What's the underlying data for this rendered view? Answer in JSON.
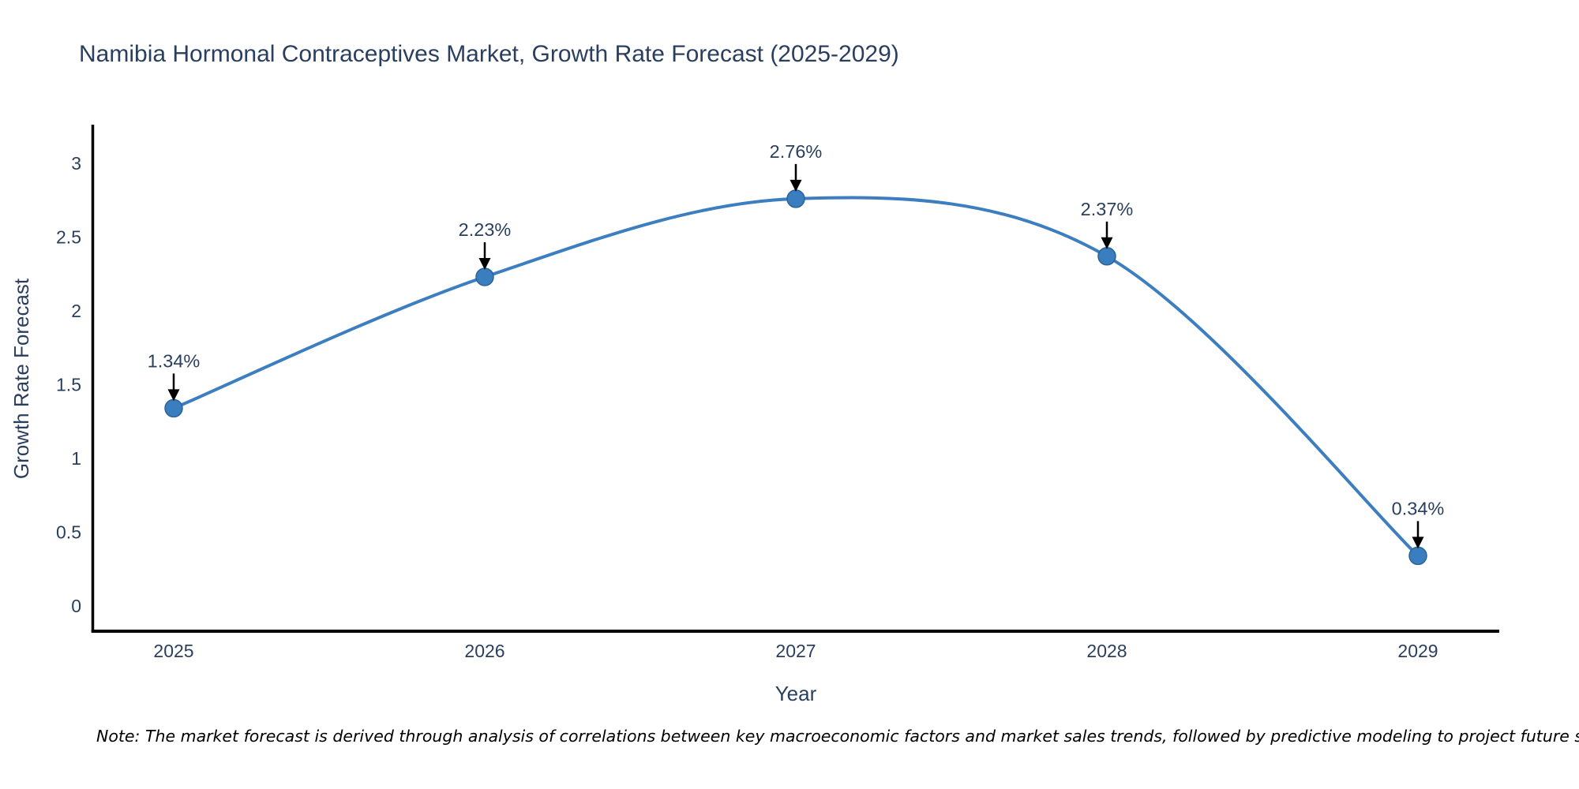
{
  "title": "Namibia Hormonal Contraceptives Market, Growth Rate Forecast (2025-2029)",
  "note": "Note: The market forecast is derived through analysis of correlations between key macroeconomic factors and market sales trends, followed by predictive modeling to project future sales",
  "chart_data": {
    "type": "line",
    "title": "Namibia Hormonal Contraceptives Market, Growth Rate Forecast (2025-2029)",
    "xlabel": "Year",
    "ylabel": "Growth Rate Forecast",
    "x": [
      2025,
      2026,
      2027,
      2028,
      2029
    ],
    "series": [
      {
        "name": "Growth Rate Forecast",
        "values": [
          1.34,
          2.23,
          2.76,
          2.37,
          0.34
        ]
      }
    ],
    "annotations": [
      "1.34%",
      "2.23%",
      "2.76%",
      "2.37%",
      "0.34%"
    ],
    "yticks": [
      0,
      0.5,
      1,
      1.5,
      2,
      2.5,
      3
    ],
    "ylim": [
      -0.16,
      3.25
    ],
    "xlim": [
      2024.74,
      2029.26
    ],
    "grid": false,
    "legend_position": "none",
    "line_shape": "spline",
    "marker_style": "circle",
    "colors": {
      "line": "#3c7ebf",
      "marker": "#3a7ebf",
      "marker_edge": "#2a6496",
      "text": "#2a3f5f",
      "arrow": "#000000",
      "axis": "#000000",
      "note": "#000000",
      "background": "#ffffff"
    }
  }
}
